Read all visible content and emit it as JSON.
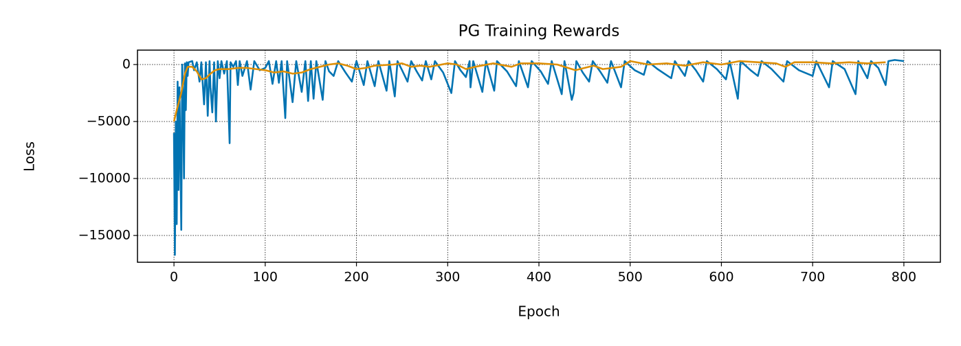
{
  "chart_data": {
    "type": "line",
    "title": "PG Training Rewards",
    "x_label": "Epoch",
    "y_label": "Loss",
    "xlim": [
      -40,
      840
    ],
    "xticks": [
      0,
      100,
      200,
      300,
      400,
      500,
      600,
      700,
      800
    ],
    "ylim": [
      -17350,
      1265
    ],
    "yticks": [
      {
        "value": -15000,
        "label": "−15000"
      },
      {
        "value": -10000,
        "label": "−10000"
      },
      {
        "value": -5000,
        "label": "−5000"
      },
      0
    ],
    "grid": true,
    "series": [
      {
        "color": "#0173b2",
        "x": [
          0,
          1,
          2,
          3,
          4,
          5,
          6,
          7,
          8,
          9,
          10,
          11,
          12,
          13,
          14,
          15,
          16,
          20,
          22,
          25,
          28,
          30,
          33,
          35,
          37,
          39,
          40,
          42,
          44,
          46,
          48,
          50,
          52,
          55,
          58,
          61,
          62,
          65,
          68,
          70,
          72,
          75,
          80,
          84,
          88,
          94,
          100,
          104,
          108,
          112,
          115,
          118,
          122,
          124,
          130,
          134,
          140,
          144,
          147,
          150,
          153,
          156,
          163,
          166,
          170,
          175,
          180,
          188,
          195,
          200,
          208,
          212,
          220,
          224,
          233,
          236,
          242,
          245,
          250,
          256,
          260,
          266,
          272,
          276,
          282,
          286,
          295,
          304,
          308,
          314,
          320,
          324,
          325,
          328,
          338,
          342,
          351,
          354,
          365,
          375,
          378,
          388,
          392,
          402,
          410,
          414,
          425,
          428,
          436,
          438,
          441,
          448,
          455,
          459,
          467,
          475,
          479,
          490,
          494,
          505,
          515,
          519,
          530,
          545,
          549,
          560,
          564,
          572,
          580,
          584,
          595,
          605,
          609,
          618,
          621,
          632,
          640,
          644,
          655,
          668,
          672,
          685,
          700,
          704,
          718,
          722,
          735,
          747,
          750,
          760,
          764,
          772,
          780,
          783,
          790,
          800
        ],
        "values": [
          -6000,
          -16700,
          -5000,
          -14000,
          -1500,
          -11000,
          -2000,
          -8000,
          -14500,
          0,
          -3000,
          -10000,
          100,
          -4000,
          200,
          -1000,
          200,
          300,
          -500,
          200,
          -1500,
          200,
          -3500,
          200,
          -4500,
          300,
          -2000,
          -4200,
          200,
          -5000,
          300,
          -1200,
          300,
          -800,
          300,
          -6900,
          200,
          -200,
          300,
          -1800,
          300,
          -1000,
          300,
          -2200,
          300,
          -500,
          -300,
          300,
          -1700,
          300,
          -1600,
          300,
          -4700,
          300,
          -3300,
          300,
          -2400,
          300,
          -3200,
          300,
          -3000,
          300,
          -3100,
          300,
          -600,
          -1000,
          300,
          -700,
          -1500,
          300,
          -1800,
          300,
          -1900,
          300,
          -2300,
          300,
          -2800,
          300,
          -500,
          -1500,
          300,
          -600,
          -1400,
          300,
          -1300,
          300,
          -700,
          -2500,
          300,
          -500,
          -1100,
          300,
          -2000,
          300,
          -2400,
          300,
          -2300,
          300,
          -600,
          -1900,
          300,
          -2000,
          300,
          -600,
          -1700,
          300,
          -2600,
          300,
          -3100,
          -2500,
          300,
          -700,
          -1500,
          300,
          -600,
          -1600,
          300,
          -2000,
          300,
          -500,
          -900,
          300,
          -400,
          -1200,
          300,
          -1000,
          300,
          -500,
          -1500,
          300,
          -400,
          -1300,
          300,
          -3000,
          300,
          -500,
          -1000,
          300,
          -400,
          -1500,
          300,
          -500,
          -1000,
          300,
          -2000,
          300,
          -400,
          -2600,
          300,
          -1200,
          300,
          -300,
          -1800,
          300,
          400,
          300
        ]
      },
      {
        "color": "#de8f05",
        "x": [
          0,
          3,
          8,
          12,
          15,
          20,
          25,
          30,
          35,
          40,
          45,
          50,
          60,
          70,
          80,
          90,
          100,
          110,
          120,
          130,
          140,
          150,
          160,
          170,
          180,
          190,
          200,
          210,
          220,
          240,
          250,
          260,
          270,
          280,
          300,
          310,
          320,
          330,
          350,
          370,
          380,
          400,
          420,
          440,
          460,
          470,
          490,
          500,
          520,
          540,
          560,
          580,
          600,
          620,
          640,
          660,
          670,
          680,
          700,
          720,
          740,
          760,
          780
        ],
        "values": [
          -5000,
          -4000,
          -2500,
          -800,
          -200,
          -200,
          -600,
          -1300,
          -1200,
          -800,
          -500,
          -400,
          -400,
          -300,
          -300,
          -400,
          -500,
          -700,
          -600,
          -800,
          -700,
          -400,
          -200,
          0,
          100,
          -100,
          -400,
          -300,
          -100,
          0,
          100,
          -200,
          -100,
          -200,
          100,
          0,
          -400,
          -200,
          100,
          -200,
          100,
          100,
          0,
          -500,
          -100,
          -400,
          -200,
          300,
          0,
          100,
          -100,
          200,
          0,
          300,
          200,
          100,
          -200,
          200,
          200,
          100,
          200,
          100,
          200
        ]
      }
    ]
  }
}
